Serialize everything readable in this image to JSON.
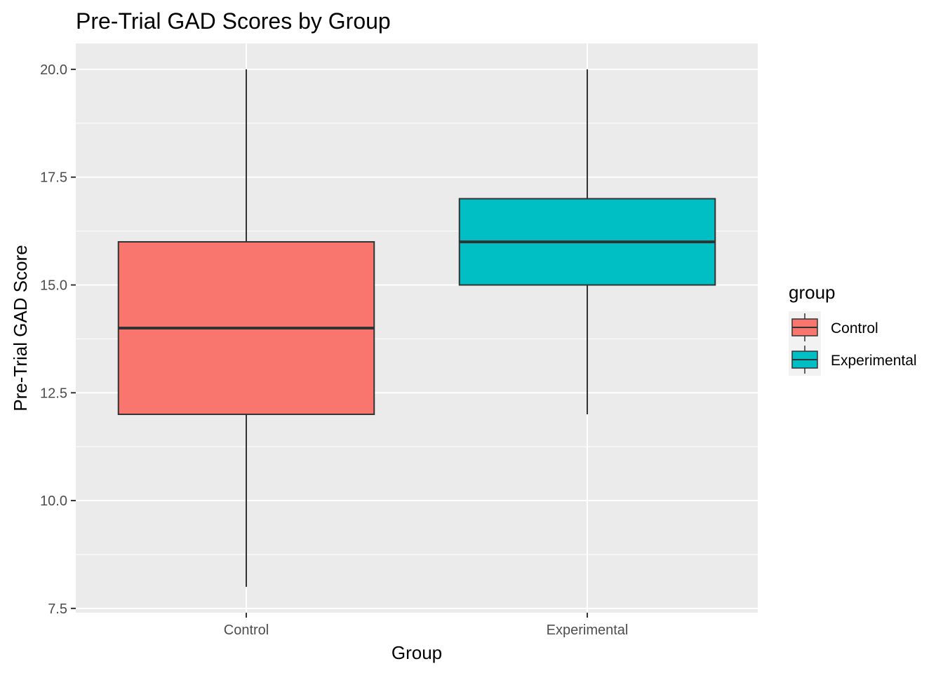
{
  "chart_data": {
    "type": "box",
    "title": "Pre-Trial GAD Scores by Group",
    "xlabel": "Group",
    "ylabel": "Pre-Trial GAD Score",
    "ylim": [
      7.4,
      20.6
    ],
    "y_ticks": [
      7.5,
      10.0,
      12.5,
      15.0,
      17.5,
      20.0
    ],
    "y_tick_labels": [
      "7.5",
      "10.0",
      "12.5",
      "15.0",
      "17.5",
      "20.0"
    ],
    "categories": [
      "Control",
      "Experimental"
    ],
    "boxes": [
      {
        "category": "Control",
        "min": 8,
        "q1": 12,
        "median": 14,
        "q3": 16,
        "max": 20,
        "fill": "#F8766D"
      },
      {
        "category": "Experimental",
        "min": 12,
        "q1": 15,
        "median": 16,
        "q3": 17,
        "max": 20,
        "fill": "#00BFC4"
      }
    ],
    "legend": {
      "title": "group",
      "position": "right",
      "entries": [
        {
          "label": "Control",
          "color": "#F8766D"
        },
        {
          "label": "Experimental",
          "color": "#00BFC4"
        }
      ]
    },
    "grid": true,
    "panel_background": "#EBEBEB",
    "grid_color": "#FFFFFF",
    "box_outline_color": "#333333"
  }
}
